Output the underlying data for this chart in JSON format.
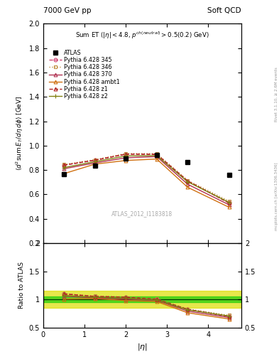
{
  "title_left": "7000 GeV pp",
  "title_right": "Soft QCD",
  "inner_title": "Sum ET (|\\eta| < 4.8, p^{ch(neutral)} > 0.5(0.2) GeV)",
  "ylabel_main": "$\\langle d^2$sum$E_T / d\\eta\\, d\\phi \\rangle$ [GeV]",
  "ylabel_ratio": "Ratio to ATLAS",
  "xlabel": "|\\eta|",
  "watermark": "ATLAS_2012_I1183818",
  "right_label1": "Rivet 3.1.10, ≥ 2.6M events",
  "right_label2": "mcplots.cern.ch [arXiv:1306.3436]",
  "eta_vals": [
    0.5,
    1.25,
    2.0,
    2.75,
    3.5,
    4.5
  ],
  "atlas_data": [
    0.765,
    0.835,
    0.895,
    0.925,
    0.862,
    0.758
  ],
  "p345_data": [
    0.84,
    0.88,
    0.93,
    0.93,
    0.71,
    0.53
  ],
  "p346_data": [
    0.845,
    0.885,
    0.935,
    0.935,
    0.715,
    0.545
  ],
  "p370_data": [
    0.81,
    0.858,
    0.9,
    0.91,
    0.683,
    0.515
  ],
  "pambt1_data": [
    0.77,
    0.848,
    0.878,
    0.89,
    0.658,
    0.495
  ],
  "pz1_data": [
    0.84,
    0.88,
    0.93,
    0.928,
    0.71,
    0.53
  ],
  "pz2_data": [
    0.82,
    0.868,
    0.915,
    0.918,
    0.703,
    0.535
  ],
  "color_345": "#d04070",
  "color_346": "#c09040",
  "color_370": "#b03050",
  "color_ambt1": "#d07010",
  "color_z1": "#b02020",
  "color_z2": "#808010",
  "ylim_main": [
    0.2,
    2.0
  ],
  "ylim_ratio": [
    0.5,
    2.0
  ],
  "band_green_inner": 0.05,
  "band_yellow_outer": 0.15,
  "background_color": "#ffffff"
}
